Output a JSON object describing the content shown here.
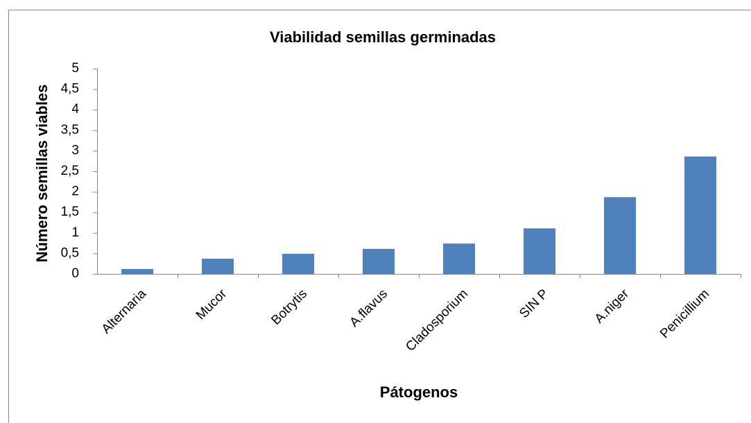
{
  "chart_data": {
    "type": "bar",
    "title": "Viabilidad semillas germinadas",
    "xlabel": "Pátogenos",
    "ylabel": "Número semillas viables",
    "categories": [
      "Alternaria",
      "Mucor",
      "Botrytis",
      "A.flavus",
      "Cladosporium",
      "SIN P",
      "A.niger",
      "Penicillium"
    ],
    "values": [
      0.12,
      0.37,
      0.49,
      0.61,
      0.74,
      1.11,
      1.87,
      2.86
    ],
    "color": "#4f81bd",
    "ylim": [
      0,
      5
    ],
    "yticks": [
      0,
      {
        "value": 0.5,
        "label": "0,5"
      },
      1,
      {
        "value": 1.5,
        "label": "1,5"
      },
      2,
      {
        "value": 2.5,
        "label": "2,5"
      },
      3,
      {
        "value": 3.5,
        "label": "3,5"
      },
      4,
      {
        "value": 4.5,
        "label": "4,5"
      },
      5
    ],
    "grid": false
  }
}
